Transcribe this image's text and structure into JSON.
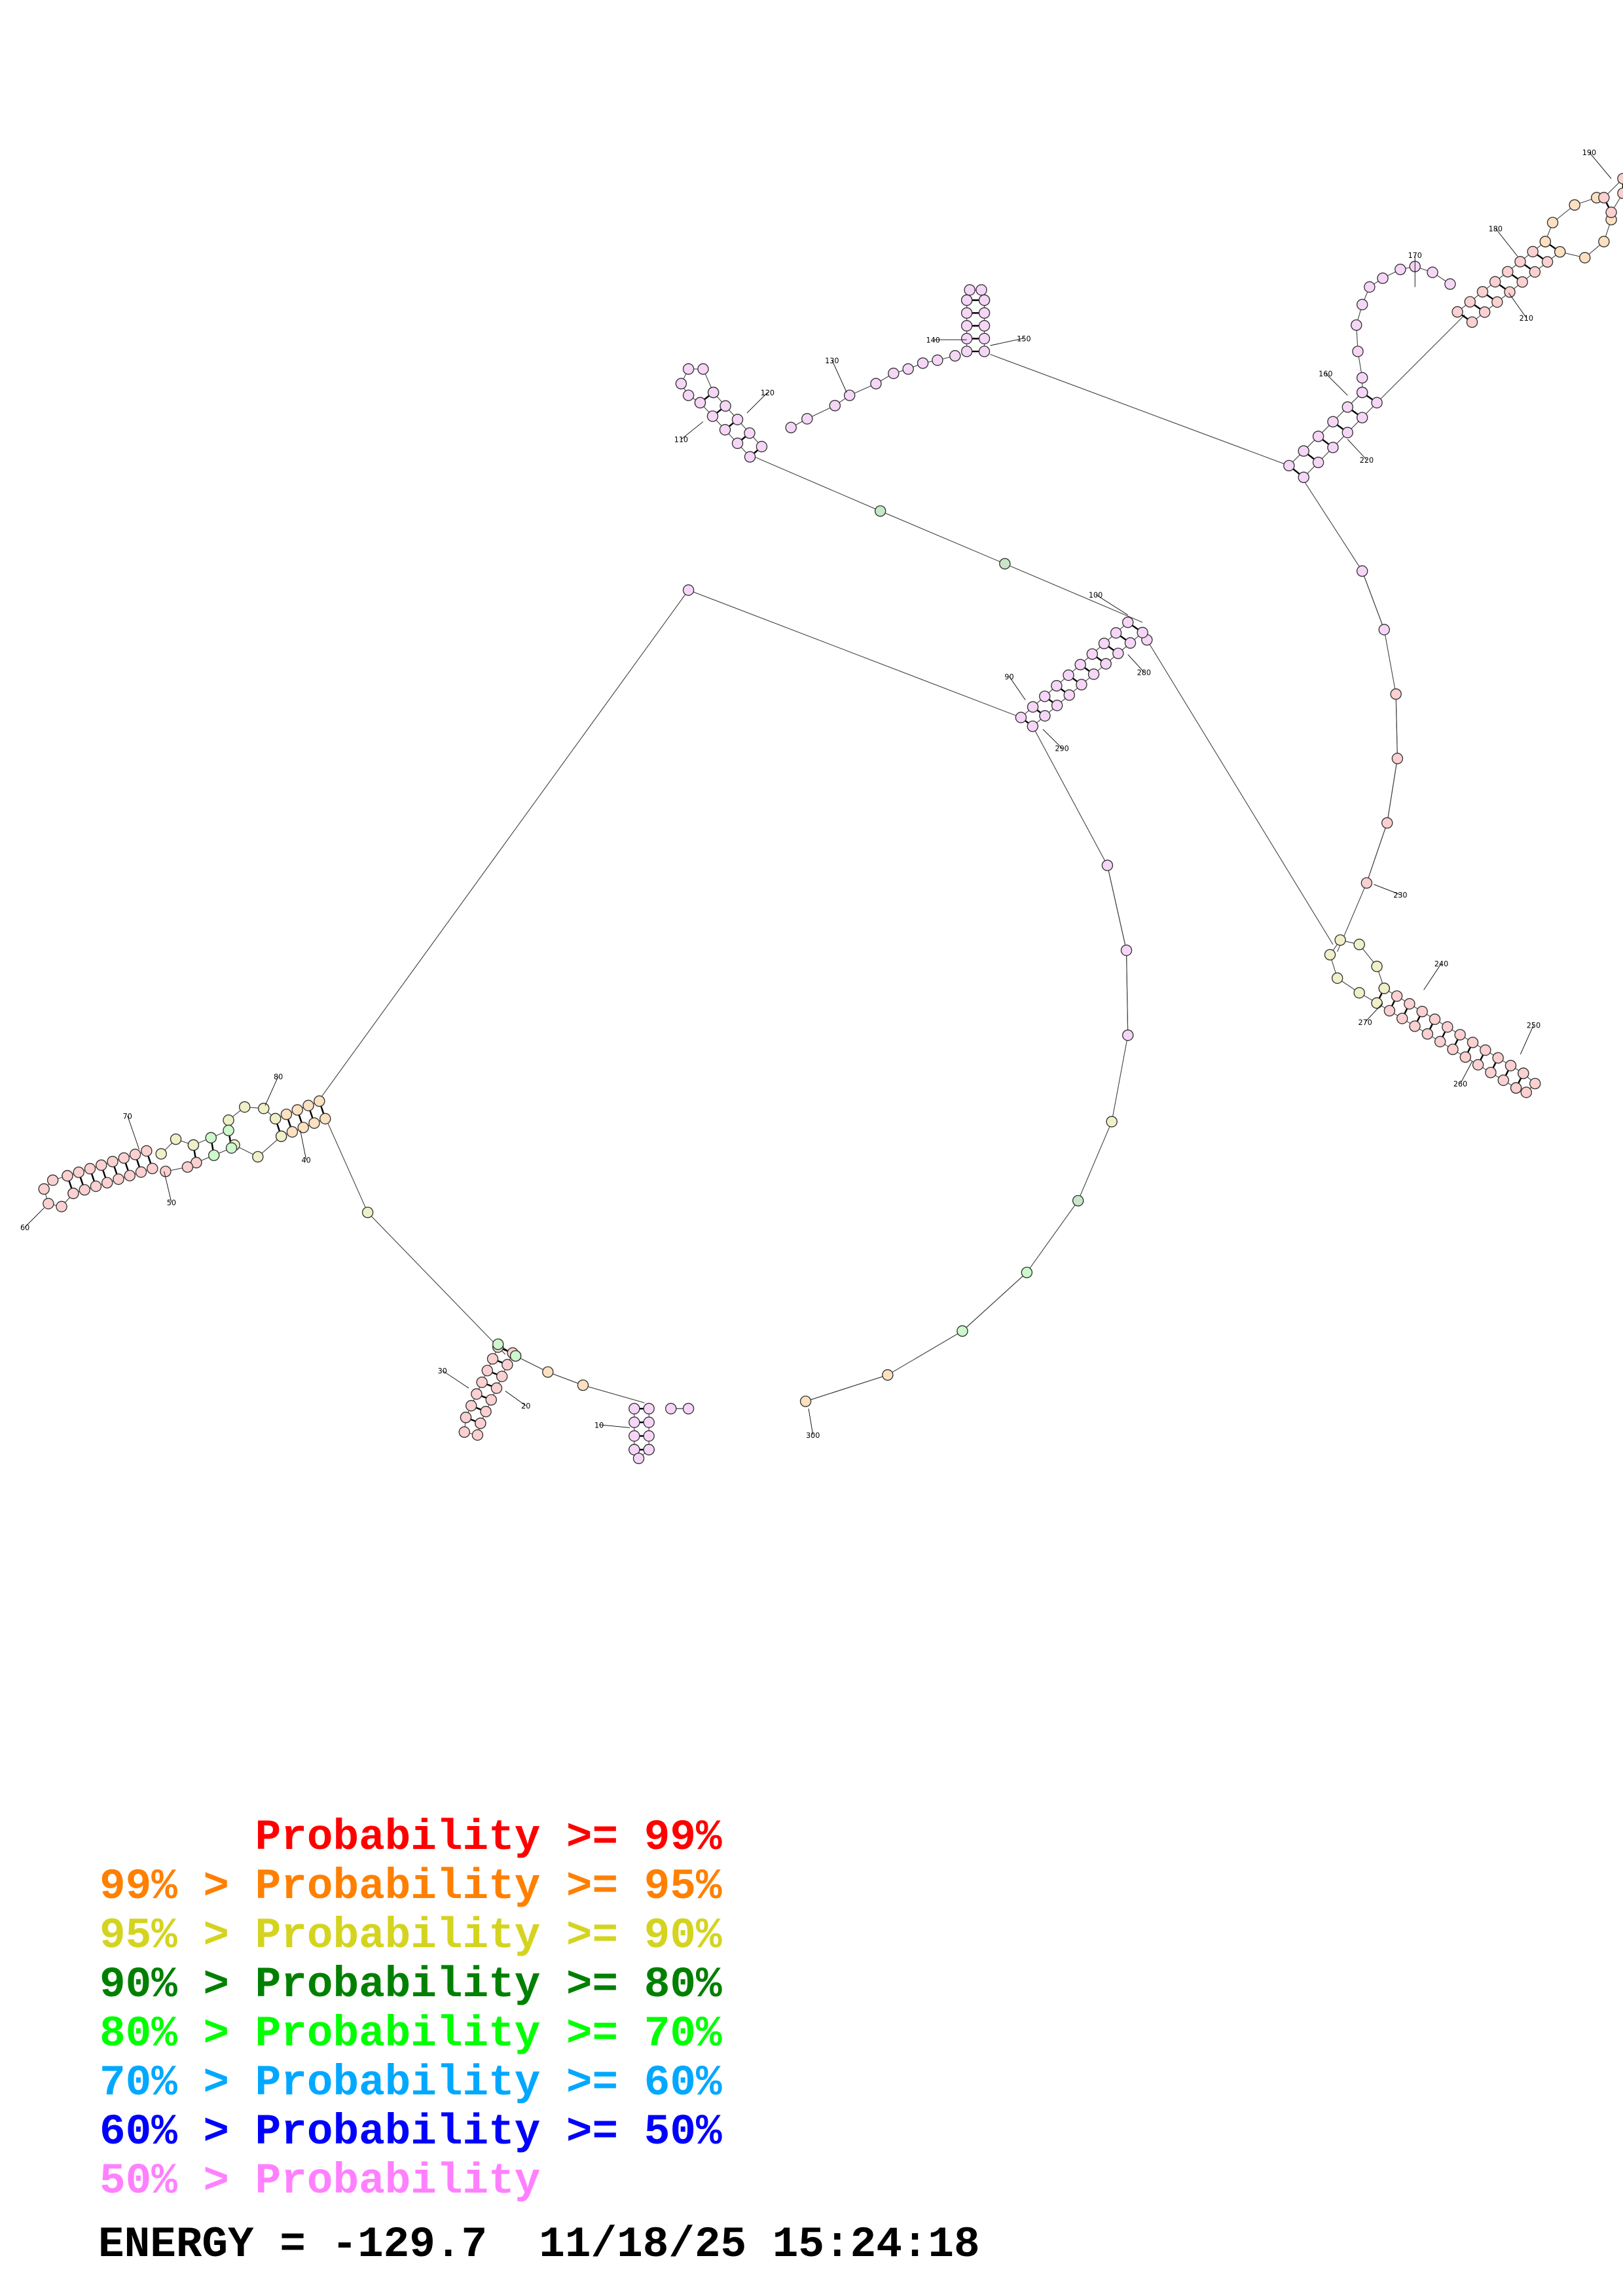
{
  "diagram": {
    "type": "RNA secondary structure",
    "position_labels": [
      "10",
      "20",
      "30",
      "40",
      "50",
      "60",
      "70",
      "80",
      "90",
      "100",
      "110",
      "120",
      "130",
      "140",
      "150",
      "160",
      "170",
      "180",
      "190",
      "210",
      "220",
      "230",
      "240",
      "250",
      "260",
      "270",
      "280",
      "290",
      "300"
    ]
  },
  "colors": {
    "p99": "#ff0000",
    "p95": "#ff8000",
    "p90": "#d4d420",
    "p80": "#008000",
    "p70": "#00ff00",
    "p60": "#00a8ff",
    "p50": "#0000ff",
    "plow": "#ff80ff"
  },
  "legend": [
    {
      "text": "      Probability >= 99%",
      "color": "#ff0000"
    },
    {
      "text": "99% > Probability >= 95%",
      "color": "#ff8000"
    },
    {
      "text": "95% > Probability >= 90%",
      "color": "#d4d420"
    },
    {
      "text": "90% > Probability >= 80%",
      "color": "#008000"
    },
    {
      "text": "80% > Probability >= 70%",
      "color": "#00ff00"
    },
    {
      "text": "70% > Probability >= 60%",
      "color": "#00a8ff"
    },
    {
      "text": "60% > Probability >= 50%",
      "color": "#0000ff"
    },
    {
      "text": "50% > Probability",
      "color": "#ff80ff"
    }
  ],
  "footer": {
    "energy_line": "ENERGY = -129.7  11/18/25 15:24:18"
  }
}
